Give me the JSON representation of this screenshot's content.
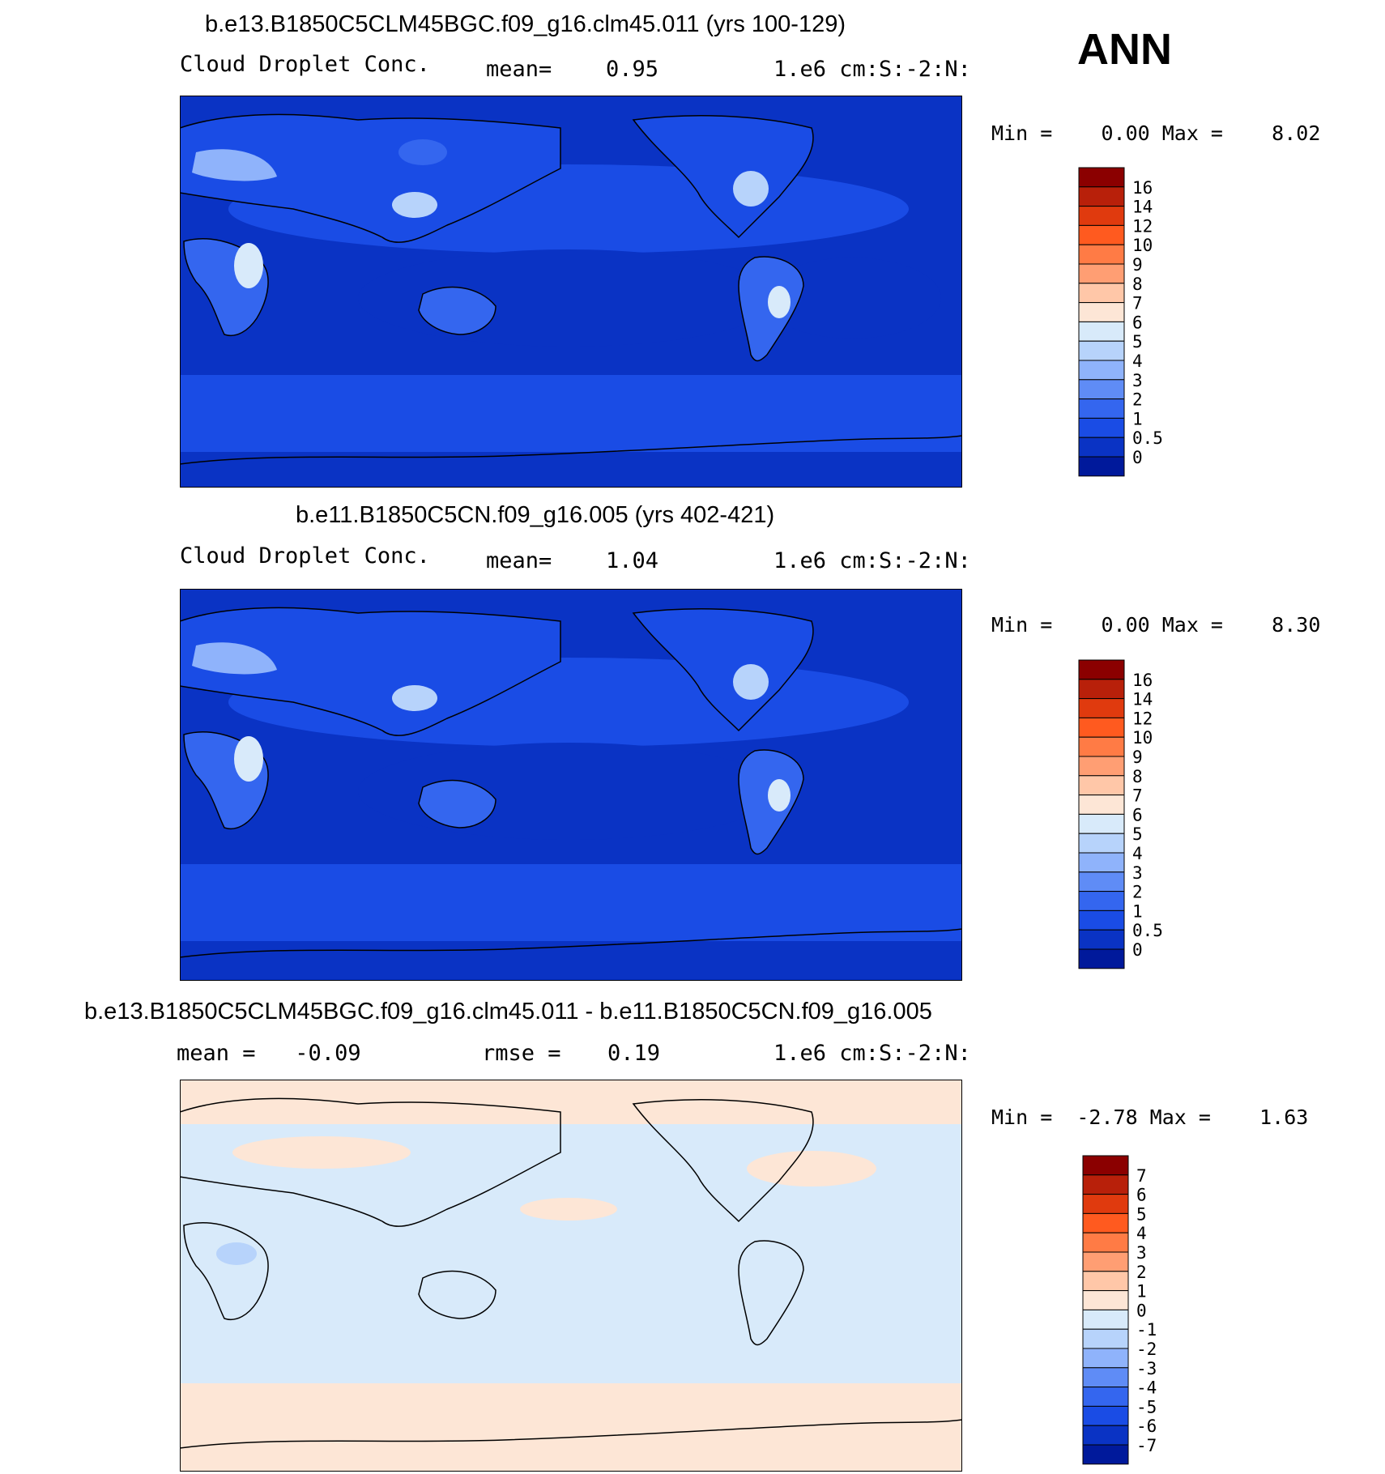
{
  "season": "ANN",
  "panels": [
    {
      "title": "b.e13.B1850C5CLM45BGC.f09_g16.clm45.011 (yrs 100-129)",
      "left": "Cloud Droplet Conc.",
      "mid_label": "mean=",
      "mid_value": "0.95",
      "units": "1.e6 cm:S:-2:N:",
      "minmax": "Min =    0.00 Max =    8.02",
      "colorbar": {
        "labels": [
          "16",
          "14",
          "12",
          "10",
          "9",
          "8",
          "7",
          "6",
          "5",
          "4",
          "3",
          "2",
          "1",
          "0.5",
          "0"
        ],
        "colors": [
          "#8b0000",
          "#b8200a",
          "#e03a0e",
          "#ff5a1f",
          "#ff7b45",
          "#ff9e73",
          "#ffc7a8",
          "#fde6d6",
          "#d8eafa",
          "#b7d3fb",
          "#8fb3fb",
          "#5f8cf6",
          "#3466ef",
          "#1a4ce5",
          "#0a33c4",
          "#00199b"
        ]
      }
    },
    {
      "title": "b.e11.B1850C5CN.f09_g16.005 (yrs 402-421)",
      "left": "Cloud Droplet Conc.",
      "mid_label": "mean=",
      "mid_value": "1.04",
      "units": "1.e6 cm:S:-2:N:",
      "minmax": "Min =    0.00 Max =    8.30",
      "colorbar": {
        "labels": [
          "16",
          "14",
          "12",
          "10",
          "9",
          "8",
          "7",
          "6",
          "5",
          "4",
          "3",
          "2",
          "1",
          "0.5",
          "0"
        ],
        "colors": [
          "#8b0000",
          "#b8200a",
          "#e03a0e",
          "#ff5a1f",
          "#ff7b45",
          "#ff9e73",
          "#ffc7a8",
          "#fde6d6",
          "#d8eafa",
          "#b7d3fb",
          "#8fb3fb",
          "#5f8cf6",
          "#3466ef",
          "#1a4ce5",
          "#0a33c4",
          "#00199b"
        ]
      }
    },
    {
      "title": "b.e13.B1850C5CLM45BGC.f09_g16.clm45.011 - b.e11.B1850C5CN.f09_g16.005",
      "left": "mean =   -0.09",
      "mid_label": "rmse =",
      "mid_value": "0.19",
      "units": "1.e6 cm:S:-2:N:",
      "minmax": "Min =  -2.78 Max =    1.63",
      "colorbar": {
        "labels": [
          "7",
          "6",
          "5",
          "4",
          "3",
          "2",
          "1",
          "0",
          "-1",
          "-2",
          "-3",
          "-4",
          "-5",
          "-6",
          "-7"
        ],
        "colors": [
          "#8b0000",
          "#b8200a",
          "#e03a0e",
          "#ff5a1f",
          "#ff7b45",
          "#ff9e73",
          "#ffc7a8",
          "#fde6d6",
          "#d8eafa",
          "#b7d3fb",
          "#8fb3fb",
          "#5f8cf6",
          "#3466ef",
          "#1a4ce5",
          "#0a33c4",
          "#00199b"
        ]
      }
    }
  ]
}
